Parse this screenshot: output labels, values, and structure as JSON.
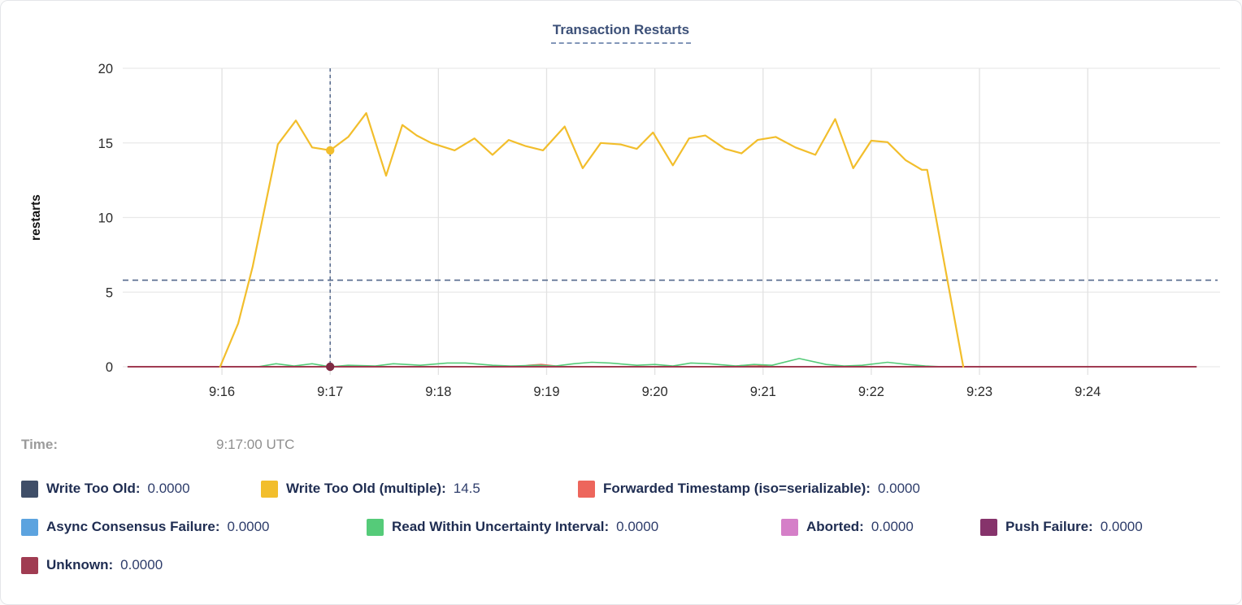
{
  "panel": {
    "title": "Transaction Restarts"
  },
  "time_row": {
    "label": "Time:",
    "value": "9:17:00 UTC"
  },
  "chart_data": {
    "type": "line",
    "title": "Transaction Restarts",
    "xlabel": "",
    "ylabel": "restarts",
    "ylim": [
      0,
      20
    ],
    "yticks": [
      0,
      5,
      10,
      15,
      20
    ],
    "x_domain": [
      "9:15:05",
      "9:25:12"
    ],
    "xticks": [
      "9:16",
      "9:17",
      "9:18",
      "9:19",
      "9:20",
      "9:21",
      "9:22",
      "9:23",
      "9:24"
    ],
    "grid": true,
    "legend_position": "bottom",
    "reference_line_y": 5.8,
    "hover_time": "9:17:00",
    "hover_points": [
      {
        "series": "Write Too Old (multiple)",
        "value": 14.5,
        "color": "#F2BE2C"
      },
      {
        "series": "Unknown",
        "value": 0,
        "color": "#7E2B43"
      }
    ],
    "draw_order": [
      0,
      3,
      5,
      6,
      2,
      4,
      7,
      1
    ],
    "series": [
      {
        "name": "Write Too Old",
        "color": "#3F4E68",
        "width": 1.6,
        "points": [
          [
            "9:15:08",
            0
          ],
          [
            "9:25:00",
            0
          ]
        ]
      },
      {
        "name": "Write Too Old (multiple)",
        "color": "#F2BE2C",
        "width": 2.2,
        "points": [
          [
            "9:15:59",
            0
          ],
          [
            "9:16:09",
            2.9
          ],
          [
            "9:16:17",
            6.7
          ],
          [
            "9:16:31",
            14.9
          ],
          [
            "9:16:41",
            16.5
          ],
          [
            "9:16:50",
            14.7
          ],
          [
            "9:16:55",
            14.6
          ],
          [
            "9:17:00",
            14.5
          ],
          [
            "9:17:10",
            15.4
          ],
          [
            "9:17:20",
            17.0
          ],
          [
            "9:17:31",
            12.8
          ],
          [
            "9:17:40",
            16.2
          ],
          [
            "9:17:48",
            15.5
          ],
          [
            "9:17:56",
            15.0
          ],
          [
            "9:18:09",
            14.5
          ],
          [
            "9:18:20",
            15.3
          ],
          [
            "9:18:30",
            14.2
          ],
          [
            "9:18:39",
            15.2
          ],
          [
            "9:18:48",
            14.8
          ],
          [
            "9:18:58",
            14.5
          ],
          [
            "9:19:10",
            16.1
          ],
          [
            "9:19:20",
            13.3
          ],
          [
            "9:19:30",
            15.0
          ],
          [
            "9:19:41",
            14.9
          ],
          [
            "9:19:50",
            14.6
          ],
          [
            "9:19:59",
            15.7
          ],
          [
            "9:20:10",
            13.5
          ],
          [
            "9:20:19",
            15.3
          ],
          [
            "9:20:28",
            15.5
          ],
          [
            "9:20:39",
            14.6
          ],
          [
            "9:20:48",
            14.3
          ],
          [
            "9:20:57",
            15.2
          ],
          [
            "9:21:07",
            15.4
          ],
          [
            "9:21:18",
            14.7
          ],
          [
            "9:21:29",
            14.2
          ],
          [
            "9:21:40",
            16.6
          ],
          [
            "9:21:50",
            13.3
          ],
          [
            "9:22:00",
            15.15
          ],
          [
            "9:22:09",
            15.05
          ],
          [
            "9:22:19",
            13.85
          ],
          [
            "9:22:28",
            13.2
          ],
          [
            "9:22:31",
            13.2
          ],
          [
            "9:22:51",
            0
          ]
        ]
      },
      {
        "name": "Forwarded Timestamp (iso=serializable)",
        "color": "#ED665C",
        "width": 1.6,
        "points": [
          [
            "9:15:08",
            0
          ],
          [
            "9:18:45",
            0
          ],
          [
            "9:18:50",
            0.1
          ],
          [
            "9:18:57",
            0.15
          ],
          [
            "9:19:05",
            0.05
          ],
          [
            "9:19:10",
            0
          ],
          [
            "9:20:40",
            0
          ],
          [
            "9:20:48",
            0.08
          ],
          [
            "9:20:56",
            0.12
          ],
          [
            "9:21:05",
            0
          ],
          [
            "9:25:00",
            0
          ]
        ]
      },
      {
        "name": "Async Consensus Failure",
        "color": "#5CA3DF",
        "width": 1.6,
        "points": [
          [
            "9:15:08",
            0
          ],
          [
            "9:25:00",
            0
          ]
        ]
      },
      {
        "name": "Read Within Uncertainty Interval",
        "color": "#55CB79",
        "width": 1.6,
        "points": [
          [
            "9:16:20",
            0
          ],
          [
            "9:16:30",
            0.2
          ],
          [
            "9:16:40",
            0.05
          ],
          [
            "9:16:50",
            0.2
          ],
          [
            "9:17:00",
            0
          ],
          [
            "9:17:10",
            0.1
          ],
          [
            "9:17:25",
            0.05
          ],
          [
            "9:17:35",
            0.2
          ],
          [
            "9:17:50",
            0.1
          ],
          [
            "9:18:05",
            0.25
          ],
          [
            "9:18:15",
            0.25
          ],
          [
            "9:18:30",
            0.1
          ],
          [
            "9:18:40",
            0.05
          ],
          [
            "9:18:55",
            0.1
          ],
          [
            "9:19:05",
            0.05
          ],
          [
            "9:19:15",
            0.2
          ],
          [
            "9:19:25",
            0.3
          ],
          [
            "9:19:35",
            0.25
          ],
          [
            "9:19:50",
            0.1
          ],
          [
            "9:20:00",
            0.15
          ],
          [
            "9:20:10",
            0.05
          ],
          [
            "9:20:20",
            0.25
          ],
          [
            "9:20:30",
            0.2
          ],
          [
            "9:20:45",
            0.05
          ],
          [
            "9:20:55",
            0.15
          ],
          [
            "9:21:05",
            0.1
          ],
          [
            "9:21:20",
            0.55
          ],
          [
            "9:21:35",
            0.15
          ],
          [
            "9:21:45",
            0.05
          ],
          [
            "9:21:55",
            0.1
          ],
          [
            "9:22:09",
            0.3
          ],
          [
            "9:22:20",
            0.15
          ],
          [
            "9:22:30",
            0.05
          ],
          [
            "9:22:40",
            0
          ]
        ]
      },
      {
        "name": "Aborted",
        "color": "#D57FC8",
        "width": 1.6,
        "points": [
          [
            "9:15:08",
            0
          ],
          [
            "9:25:00",
            0
          ]
        ]
      },
      {
        "name": "Push Failure",
        "color": "#86336B",
        "width": 1.6,
        "points": [
          [
            "9:15:08",
            0
          ],
          [
            "9:25:00",
            0
          ]
        ]
      },
      {
        "name": "Unknown",
        "color": "#A03C52",
        "width": 2,
        "points": [
          [
            "9:15:08",
            0
          ],
          [
            "9:25:00",
            0
          ]
        ]
      }
    ]
  },
  "legend": {
    "rows": [
      [
        {
          "label": "Write Too Old:",
          "value": "0.0000",
          "color": "#3F4E68"
        },
        {
          "label": "Write Too Old (multiple):",
          "value": "14.5",
          "color": "#F2BE2C"
        },
        {
          "label": "Forwarded Timestamp (iso=serializable):",
          "value": "0.0000",
          "color": "#ED665C"
        }
      ],
      [
        {
          "label": "Async Consensus Failure:",
          "value": "0.0000",
          "color": "#5CA3DF"
        },
        {
          "label": "Read Within Uncertainty Interval:",
          "value": "0.0000",
          "color": "#55CB79"
        },
        {
          "label": "Aborted:",
          "value": "0.0000",
          "color": "#D57FC8"
        },
        {
          "label": "Push Failure:",
          "value": "0.0000",
          "color": "#86336B"
        }
      ],
      [
        {
          "label": "Unknown:",
          "value": "0.0000",
          "color": "#A03C52"
        }
      ]
    ]
  }
}
